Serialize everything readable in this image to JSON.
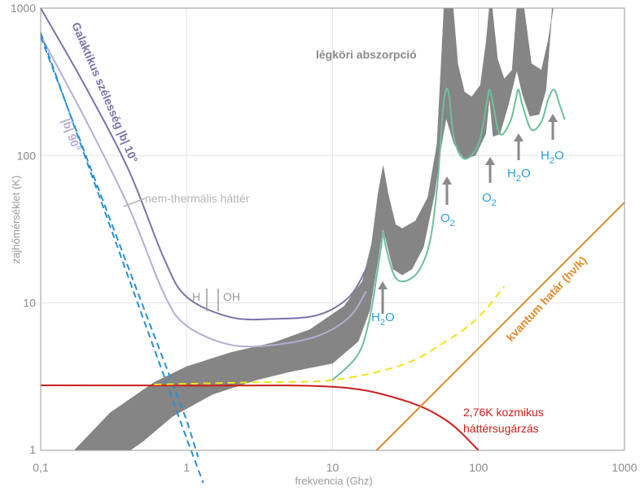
{
  "chart_data": {
    "type": "line",
    "xlabel": "frekvencia (Ghz)",
    "ylabel": "zajhőmérséklet (K)",
    "xscale": "log",
    "yscale": "log",
    "xlim": [
      0.1,
      1000
    ],
    "ylim": [
      1,
      1000
    ],
    "x_ticks": [
      "0,1",
      "1",
      "10",
      "100",
      "1000"
    ],
    "y_ticks": [
      "1",
      "10",
      "100",
      "1000"
    ],
    "grid": true,
    "colors": {
      "galactic_10": "#7b73a8",
      "galactic_90": "#b4aed3",
      "nonthermal": "#2b8fd0",
      "atmosphere": "#858585",
      "atmosphere_low": "#6dbf9a",
      "cmb": "#c8201c",
      "quantum": "#e08a2c",
      "total_dashed": "#f2e21b"
    },
    "series": [
      {
        "name": "Galaktikus szélesség |b| 10°",
        "x": [
          0.1,
          0.2,
          0.4,
          0.7,
          1,
          2,
          4,
          8,
          13,
          17
        ],
        "y": [
          1000,
          300,
          80,
          20,
          11,
          8,
          7.8,
          8.3,
          11,
          17
        ]
      },
      {
        "name": "|b| 90°",
        "x": [
          0.1,
          0.2,
          0.4,
          0.7,
          1,
          2,
          4,
          8,
          13,
          17
        ],
        "y": [
          650,
          180,
          45,
          11.5,
          7,
          5.2,
          5.2,
          6,
          8,
          12
        ]
      },
      {
        "name": "nem-thermális háttér",
        "x": [
          0.1,
          0.5,
          1,
          1.3
        ],
        "y": [
          680,
          8,
          1.2,
          0.6
        ]
      },
      {
        "name": "kvantum határ (hν/k)",
        "x": [
          20,
          1000
        ],
        "y": [
          1,
          48
        ]
      },
      {
        "name": "2,76K kozmikus háttérsugárzás",
        "x": [
          0.1,
          1,
          10,
          30,
          60,
          100
        ],
        "y": [
          2.76,
          2.75,
          2.7,
          2.2,
          1.6,
          1
        ]
      },
      {
        "name": "légköri abszorpció",
        "x": [
          0.17,
          1,
          5,
          15,
          22,
          30,
          60,
          120,
          200,
          400
        ],
        "y": [
          1,
          3,
          4.8,
          15,
          85,
          22,
          700,
          1000,
          800,
          1000
        ]
      }
    ],
    "annotations": [
      {
        "text": "légköri abszorpció"
      },
      {
        "text": "nem-thermális háttér"
      },
      {
        "text": "H"
      },
      {
        "text": "OH"
      },
      {
        "text": "2,76K kozmikus háttérsugárzás"
      }
    ],
    "molecule_labels": [
      {
        "base": "H",
        "sub": "2",
        "tail": "O"
      },
      {
        "base": "O",
        "sub": "2",
        "tail": ""
      },
      {
        "base": "O",
        "sub": "2",
        "tail": ""
      },
      {
        "base": "H",
        "sub": "2",
        "tail": "O"
      },
      {
        "base": "H",
        "sub": "2",
        "tail": "O"
      }
    ]
  }
}
